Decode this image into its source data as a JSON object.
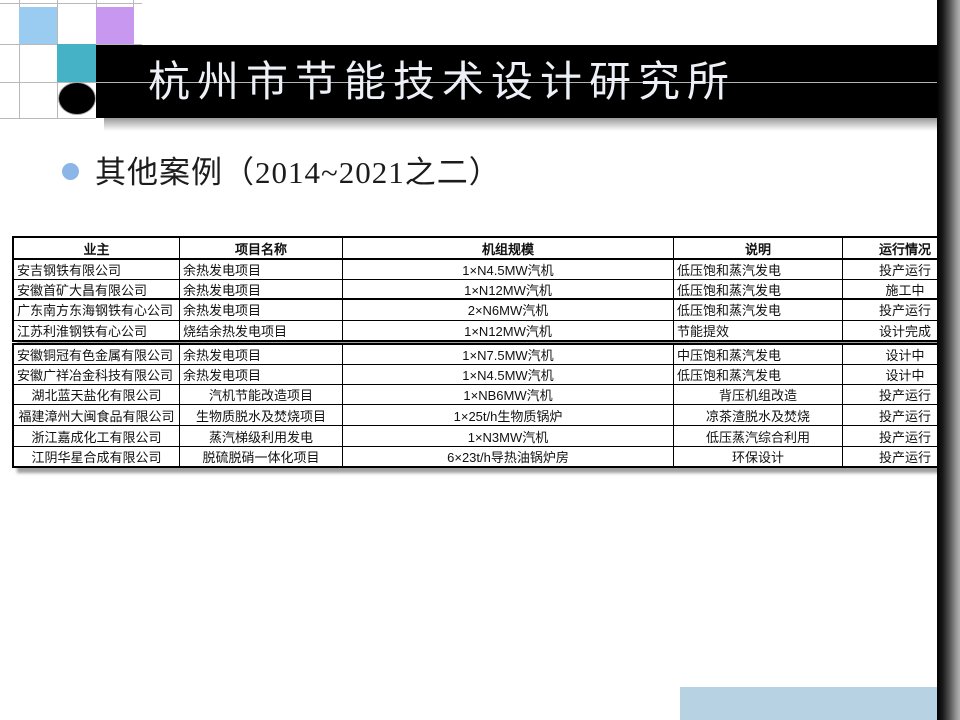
{
  "header": {
    "title": "杭州市节能技术设计研究所"
  },
  "bullet": {
    "text": "其他案例（2014~2021之二）"
  },
  "table": {
    "columns": [
      "业主",
      "项目名称",
      "机组规模",
      "说明",
      "运行情况"
    ],
    "sections": [
      {
        "rows": [
          [
            "安吉钢铁有限公司",
            "余热发电项目",
            "1×N4.5MW汽机",
            "低压饱和蒸汽发电",
            "投产运行"
          ],
          [
            "安徽首矿大昌有限公司",
            "余热发电项目",
            "1×N12MW汽机",
            "低压饱和蒸汽发电",
            "施工中"
          ]
        ]
      },
      {
        "rows": [
          [
            "广东南方东海钢铁有心公司",
            "余热发电项目",
            "2×N6MW汽机",
            "低压饱和蒸汽发电",
            "投产运行"
          ],
          [
            "江苏利淮钢铁有心公司",
            "烧结余热发电项目",
            "1×N12MW汽机",
            "节能提效",
            "设计完成"
          ]
        ]
      },
      {
        "rows": [
          [
            "安徽铜冠有色金属有限公司",
            "余热发电项目",
            "1×N7.5MW汽机",
            "中压饱和蒸汽发电",
            "设计中"
          ],
          [
            "安徽广祥冶金科技有限公司",
            "余热发电项目",
            "1×N4.5MW汽机",
            "低压饱和蒸汽发电",
            "设计中"
          ],
          [
            "湖北蓝天盐化有限公司",
            "汽机节能改造项目",
            "1×NB6MW汽机",
            "背压机组改造",
            "投产运行"
          ],
          [
            "福建漳州大闽食品有限公司",
            "生物质脱水及焚烧项目",
            "1×25t/h生物质锅炉",
            "凉茶渣脱水及焚烧",
            "投产运行"
          ],
          [
            "浙江嘉成化工有限公司",
            "蒸汽梯级利用发电",
            "1×N3MW汽机",
            "低压蒸汽综合利用",
            "投产运行"
          ],
          [
            "江阴华星合成有限公司",
            "脱硫脱硝一体化项目",
            "6×23t/h导热油锅炉房",
            "环保设计",
            "投产运行"
          ]
        ]
      }
    ]
  },
  "decor": {
    "colors": {
      "light_blue_square": "#9accf2",
      "purple_square": "#c897f0",
      "teal_square": "#46b2c6",
      "title_bar": "#000000",
      "title_text": "#edf1f7",
      "bullet_dot": "#8cb6e8",
      "bottom_rect": "#b7d2e3"
    }
  }
}
